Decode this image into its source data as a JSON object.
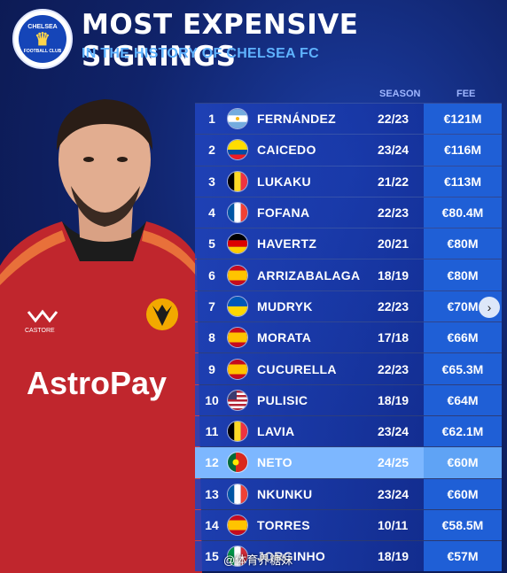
{
  "header": {
    "title": "MOST EXPENSIVE SIGNINGS",
    "subtitle": "IN THE HISTORY OF CHELSEA FC",
    "crest_top": "CHELSEA",
    "crest_bottom": "FOOTBALL CLUB"
  },
  "columns": {
    "season": "SEASON",
    "fee": "FEE"
  },
  "rows": [
    {
      "rank": "1",
      "name": "FERNÁNDEZ",
      "season": "22/23",
      "fee": "€121M",
      "flag": "argentina"
    },
    {
      "rank": "2",
      "name": "CAICEDO",
      "season": "23/24",
      "fee": "€116M",
      "flag": "ecuador"
    },
    {
      "rank": "3",
      "name": "LUKAKU",
      "season": "21/22",
      "fee": "€113M",
      "flag": "belgium"
    },
    {
      "rank": "4",
      "name": "FOFANA",
      "season": "22/23",
      "fee": "€80.4M",
      "flag": "france"
    },
    {
      "rank": "5",
      "name": "HAVERTZ",
      "season": "20/21",
      "fee": "€80M",
      "flag": "germany"
    },
    {
      "rank": "6",
      "name": "ARRIZABALAGA",
      "season": "18/19",
      "fee": "€80M",
      "flag": "spain"
    },
    {
      "rank": "7",
      "name": "MUDRYK",
      "season": "22/23",
      "fee": "€70M",
      "flag": "ukraine"
    },
    {
      "rank": "8",
      "name": "MORATA",
      "season": "17/18",
      "fee": "€66M",
      "flag": "spain"
    },
    {
      "rank": "9",
      "name": "CUCURELLA",
      "season": "22/23",
      "fee": "€65.3M",
      "flag": "spain"
    },
    {
      "rank": "10",
      "name": "PULISIC",
      "season": "18/19",
      "fee": "€64M",
      "flag": "usa"
    },
    {
      "rank": "11",
      "name": "LAVIA",
      "season": "23/24",
      "fee": "€62.1M",
      "flag": "belgium"
    },
    {
      "rank": "12",
      "name": "NETO",
      "season": "24/25",
      "fee": "€60M",
      "flag": "portugal",
      "highlight": true
    },
    {
      "rank": "13",
      "name": "NKUNKU",
      "season": "23/24",
      "fee": "€60M",
      "flag": "france"
    },
    {
      "rank": "14",
      "name": "TORRES",
      "season": "10/11",
      "fee": "€58.5M",
      "flag": "spain"
    },
    {
      "rank": "15",
      "name": "JORGINHO",
      "season": "18/19",
      "fee": "€57M",
      "flag": "italy"
    }
  ],
  "player": {
    "shirt_sponsor": "AstroPay",
    "kit_brand": "CASTORE"
  },
  "watermark": "@体育界糖妹",
  "colors": {
    "accent": "#5fb3ff",
    "row": "#2044be",
    "fee": "#1f5fd6",
    "highlight": "#7db7ff"
  }
}
